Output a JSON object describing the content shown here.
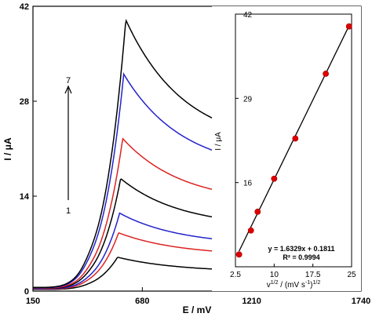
{
  "chart_data": [
    {
      "type": "line",
      "xlabel": "E / mV",
      "ylabel": "I / μA",
      "xlim": [
        150,
        1740
      ],
      "ylim": [
        0,
        42
      ],
      "xticks": [
        "150",
        "680",
        "1210",
        "1740"
      ],
      "yticks": [
        "0",
        "14",
        "28",
        "42"
      ],
      "grid": false,
      "annotations": {
        "arrow_top": "7",
        "arrow_bottom": "1"
      },
      "series": [
        {
          "color": "#000000",
          "peak_x": 560,
          "peak_y": 5.0,
          "end_y": 2.8
        },
        {
          "color": "#dd2222",
          "peak_x": 565,
          "peak_y": 8.6,
          "end_y": 5.2
        },
        {
          "color": "#2222cc",
          "peak_x": 570,
          "peak_y": 11.5,
          "end_y": 6.7
        },
        {
          "color": "#000000",
          "peak_x": 575,
          "peak_y": 16.6,
          "end_y": 9.4
        },
        {
          "color": "#dd2222",
          "peak_x": 585,
          "peak_y": 22.5,
          "end_y": 12.9
        },
        {
          "color": "#2222cc",
          "peak_x": 590,
          "peak_y": 32.0,
          "end_y": 17.6
        },
        {
          "color": "#000000",
          "peak_x": 600,
          "peak_y": 40.0,
          "end_y": 21.3
        }
      ]
    },
    {
      "type": "scatter",
      "xlabel_parts": {
        "pre": "v",
        "sup1": "1/2",
        "mid1": " / (mV  s",
        "sup2": "-1",
        "mid2": ")",
        "sup3": "1/2"
      },
      "ylabel": "I / μA",
      "xlim": [
        2.5,
        25
      ],
      "ylim": [
        3,
        42
      ],
      "xticks": [
        "2.5",
        "10",
        "17.5",
        "25"
      ],
      "yticks": [
        "16",
        "29",
        "42"
      ],
      "x": [
        3.2,
        5.5,
        6.8,
        10.0,
        14.1,
        20.0,
        24.5
      ],
      "y": [
        4.9,
        8.6,
        11.5,
        16.6,
        22.8,
        32.8,
        40.1
      ],
      "fit": {
        "slope": 1.6329,
        "intercept": 0.1811
      },
      "fit_equation": "y = 1.6329x + 0.1811",
      "r_squared": "R² = 0.9994",
      "marker_color": "#dd0000"
    }
  ]
}
